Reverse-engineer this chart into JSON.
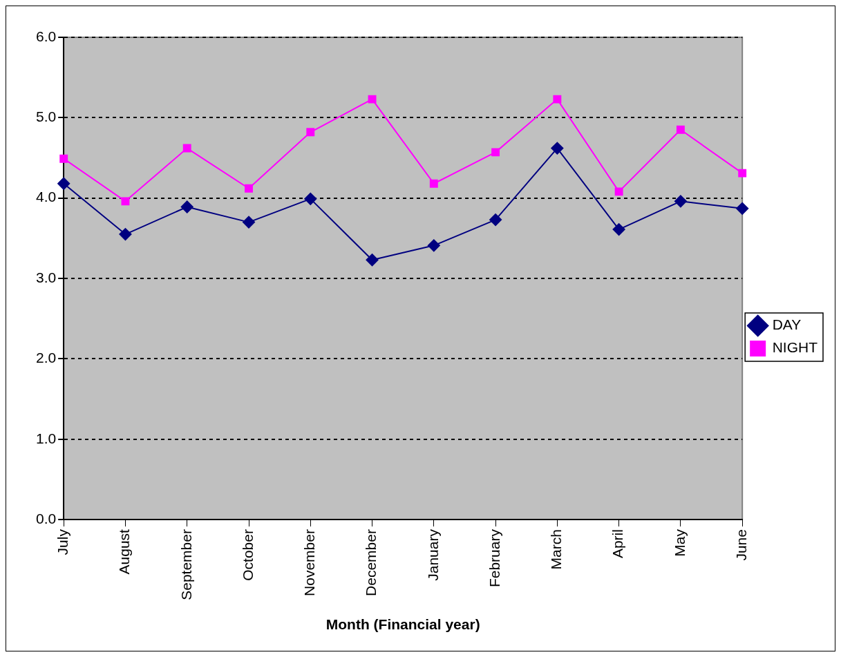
{
  "chart_data": {
    "type": "line",
    "xlabel": "Month (Financial year)",
    "categories": [
      "July",
      "August",
      "September",
      "October",
      "November",
      "December",
      "January",
      "February",
      "March",
      "April",
      "May",
      "June"
    ],
    "series": [
      {
        "name": "DAY",
        "color": "#000080",
        "marker": "diamond",
        "values": [
          4.18,
          3.55,
          3.89,
          3.7,
          3.99,
          3.23,
          3.41,
          3.73,
          4.62,
          3.61,
          3.96,
          3.87
        ]
      },
      {
        "name": "NIGHT",
        "color": "#ff00ff",
        "marker": "square",
        "values": [
          4.49,
          3.96,
          4.62,
          4.12,
          4.82,
          5.23,
          4.18,
          4.57,
          5.23,
          4.08,
          4.85,
          4.31
        ]
      }
    ],
    "ylim": [
      0,
      6
    ],
    "yticks": [
      {
        "value": 0,
        "label": "0.0"
      },
      {
        "value": 1,
        "label": "1.0"
      },
      {
        "value": 2,
        "label": "2.0"
      },
      {
        "value": 3,
        "label": "3.0"
      },
      {
        "value": 4,
        "label": "4.0"
      },
      {
        "value": 5,
        "label": "5.0"
      },
      {
        "value": 6,
        "label": "6.0"
      }
    ],
    "grid": "y",
    "legend": "right",
    "line_style": "solid"
  }
}
